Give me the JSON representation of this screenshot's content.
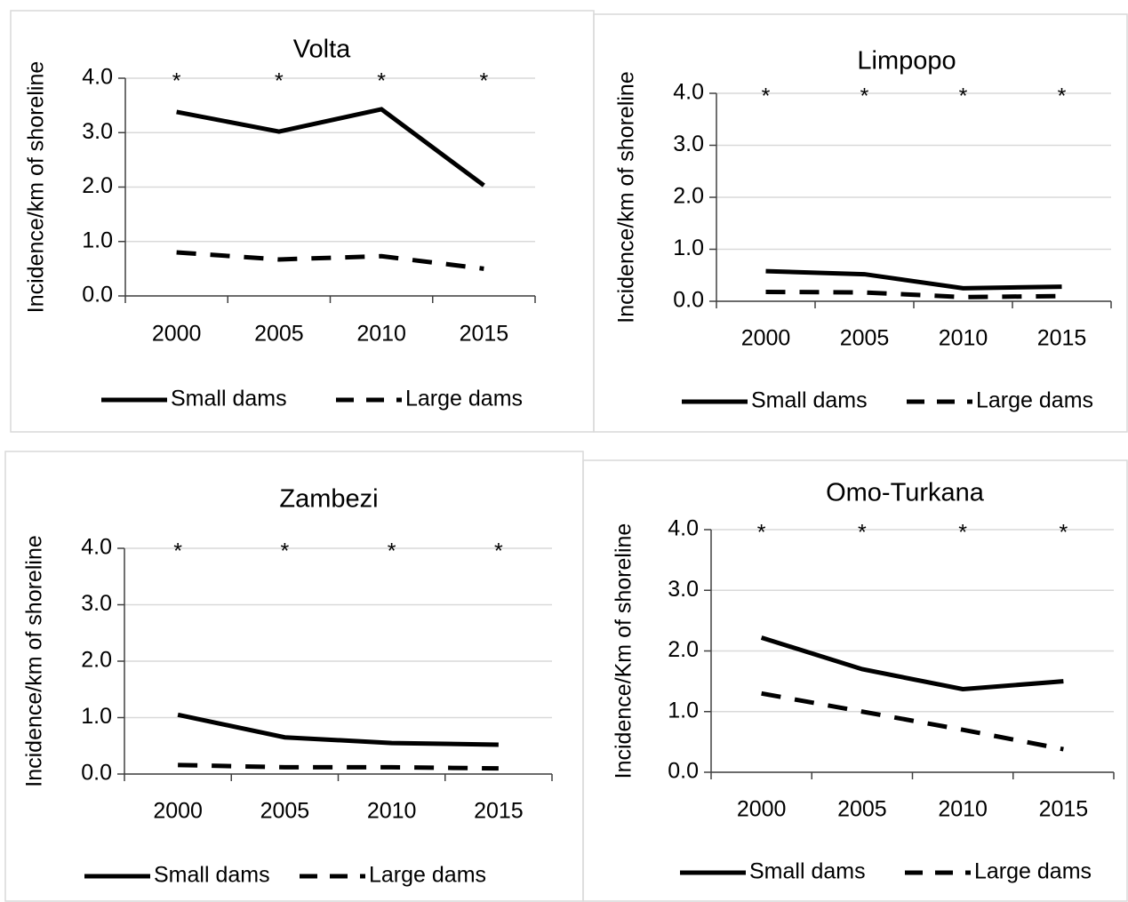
{
  "chart_data": [
    {
      "type": "line",
      "title": "Volta",
      "y_label": "Incidence/km of shoreline",
      "categories": [
        "2000",
        "2005",
        "2010",
        "2015"
      ],
      "series": [
        {
          "name": "Small dams",
          "color": "#000000",
          "line_style": "solid",
          "values": [
            3.38,
            3.02,
            3.43,
            2.03
          ]
        },
        {
          "name": "Large dams",
          "color": "#000000",
          "line_style": "dashed",
          "values": [
            0.8,
            0.67,
            0.73,
            0.5
          ]
        }
      ],
      "annotations": [
        "*",
        "*",
        "*",
        "*"
      ],
      "ylim": [
        0,
        4
      ],
      "yticks": [
        {
          "value": 0,
          "label": "0.0"
        },
        {
          "value": 1,
          "label": "1.0"
        },
        {
          "value": 2,
          "label": "2.0"
        },
        {
          "value": 3,
          "label": "3.0"
        },
        {
          "value": 4,
          "label": "4.0"
        }
      ],
      "grid": true,
      "legend": "bottom"
    },
    {
      "type": "line",
      "title": "Limpopo",
      "y_label": "Incidence/km of shoreline",
      "categories": [
        "2000",
        "2005",
        "2010",
        "2015"
      ],
      "series": [
        {
          "name": "Small dams",
          "color": "#000000",
          "line_style": "solid",
          "values": [
            0.58,
            0.52,
            0.25,
            0.28
          ]
        },
        {
          "name": "Large dams",
          "color": "#000000",
          "line_style": "dashed",
          "values": [
            0.18,
            0.17,
            0.08,
            0.1
          ]
        }
      ],
      "annotations": [
        "*",
        "*",
        "*",
        "*"
      ],
      "ylim": [
        0,
        4
      ],
      "yticks": [
        {
          "value": 0,
          "label": "0.0"
        },
        {
          "value": 1,
          "label": "1.0"
        },
        {
          "value": 2,
          "label": "2.0"
        },
        {
          "value": 3,
          "label": "3.0"
        },
        {
          "value": 4,
          "label": "4.0"
        }
      ],
      "grid": true,
      "legend": "bottom"
    },
    {
      "type": "line",
      "title": "Zambezi",
      "y_label": "Incidence/km of shoreline",
      "categories": [
        "2000",
        "2005",
        "2010",
        "2015"
      ],
      "series": [
        {
          "name": "Small dams",
          "color": "#000000",
          "line_style": "solid",
          "values": [
            1.05,
            0.65,
            0.55,
            0.52
          ]
        },
        {
          "name": "Large dams",
          "color": "#000000",
          "line_style": "dashed",
          "values": [
            0.16,
            0.12,
            0.12,
            0.1
          ]
        }
      ],
      "annotations": [
        "*",
        "*",
        "*",
        "*"
      ],
      "ylim": [
        0,
        4
      ],
      "yticks": [
        {
          "value": 0,
          "label": "0.0"
        },
        {
          "value": 1,
          "label": "1.0"
        },
        {
          "value": 2,
          "label": "2.0"
        },
        {
          "value": 3,
          "label": "3.0"
        },
        {
          "value": 4,
          "label": "4.0"
        }
      ],
      "grid": true,
      "legend": "bottom"
    },
    {
      "type": "line",
      "title": "Omo-Turkana",
      "y_label": "Incidence/Km of shoreline",
      "categories": [
        "2000",
        "2005",
        "2010",
        "2015"
      ],
      "series": [
        {
          "name": "Small dams",
          "color": "#000000",
          "line_style": "solid",
          "values": [
            2.22,
            1.7,
            1.37,
            1.5
          ]
        },
        {
          "name": "Large dams",
          "color": "#000000",
          "line_style": "dashed",
          "values": [
            1.3,
            1.0,
            0.7,
            0.38
          ]
        }
      ],
      "annotations": [
        "*",
        "*",
        "*",
        "*"
      ],
      "ylim": [
        0,
        4
      ],
      "yticks": [
        {
          "value": 0,
          "label": "0.0"
        },
        {
          "value": 1,
          "label": "1.0"
        },
        {
          "value": 2,
          "label": "2.0"
        },
        {
          "value": 3,
          "label": "3.0"
        },
        {
          "value": 4,
          "label": "4.0"
        }
      ],
      "grid": true,
      "legend": "bottom"
    }
  ]
}
